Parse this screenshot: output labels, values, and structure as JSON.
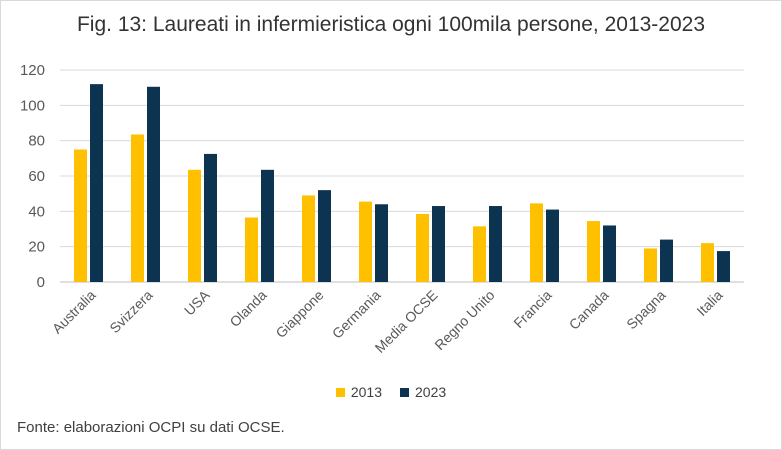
{
  "title": "Fig. 13: Laureati in infermieristica ogni 100mila persone, 2013-2023",
  "source_note": "Fonte: elaborazioni OCPI su dati OCSE.",
  "colors": {
    "s2013": "#FFC000",
    "s2023": "#0C3450",
    "grid": "#d9d9d9",
    "text": "#595959"
  },
  "chart_data": {
    "type": "bar",
    "title": "Fig. 13: Laureati in infermieristica ogni 100mila persone, 2013-2023",
    "xlabel": "",
    "ylabel": "",
    "ylim": [
      0,
      120
    ],
    "yticks": [
      0,
      20,
      40,
      60,
      80,
      100,
      120
    ],
    "grid": true,
    "legend_position": "bottom",
    "categories": [
      "Australia",
      "Svizzera",
      "USA",
      "Olanda",
      "Giappone",
      "Germania",
      "Media OCSE",
      "Regno Unito",
      "Francia",
      "Canada",
      "Spagna",
      "Italia"
    ],
    "series": [
      {
        "name": "2013",
        "color": "#FFC000",
        "values": [
          75,
          83.5,
          63.5,
          36.5,
          49,
          45.5,
          38.5,
          31.5,
          44.5,
          34.5,
          19,
          22
        ]
      },
      {
        "name": "2023",
        "color": "#0C3450",
        "values": [
          112,
          110.5,
          72.5,
          63.5,
          52,
          44,
          43,
          43,
          41,
          32,
          24,
          17.5
        ]
      }
    ]
  }
}
